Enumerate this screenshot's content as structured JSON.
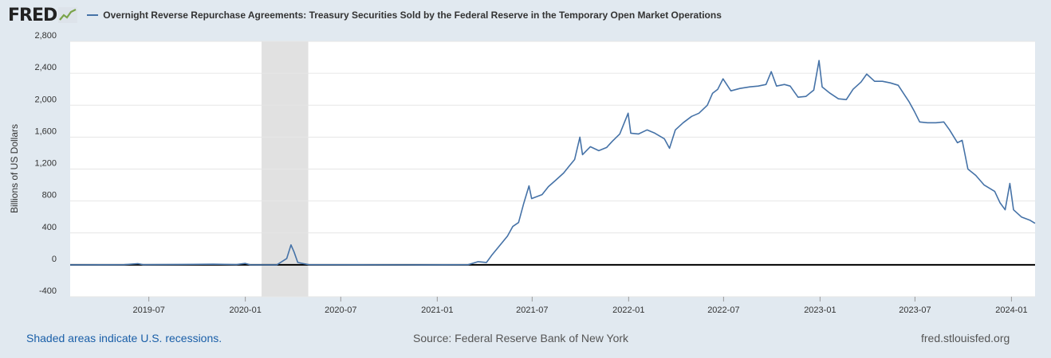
{
  "header": {
    "logo_text": "FRED",
    "logo_icon": "chart-line-icon",
    "series_title": "Overnight Reverse Repurchase Agreements: Treasury Securities Sold by the Federal Reserve in the Temporary Open Market Operations"
  },
  "footer": {
    "recession_note": "Shaded areas indicate U.S. recessions.",
    "source": "Source: Federal Reserve Bank of New York",
    "site": "fred.stlouisfed.org"
  },
  "colors": {
    "line": "#4572a7",
    "recession": "#e1e1e1",
    "zero_line": "#000000",
    "background": "#e1e9f0"
  },
  "chart_data": {
    "type": "line",
    "title": "Overnight Reverse Repurchase Agreements: Treasury Securities Sold by the Federal Reserve in the Temporary Open Market Operations",
    "ylabel": "Billions of US Dollars",
    "xlabel": "",
    "ylim": [
      -400,
      2800
    ],
    "yticks": [
      -400,
      0,
      400,
      800,
      1200,
      1600,
      2000,
      2400,
      2800
    ],
    "ytick_labels": [
      "-400",
      "0",
      "400",
      "800",
      "1,200",
      "1,600",
      "2,000",
      "2,400",
      "2,800"
    ],
    "xlim": [
      "2019-02-01",
      "2024-02-15"
    ],
    "xticks": [
      "2019-07",
      "2020-01",
      "2020-07",
      "2021-01",
      "2021-07",
      "2022-01",
      "2022-07",
      "2023-01",
      "2023-07",
      "2024-01"
    ],
    "grid": true,
    "legend": "top-left",
    "recessions": [
      {
        "start": "2020-02-01",
        "end": "2020-04-30"
      }
    ],
    "series": [
      {
        "name": "Overnight Reverse Repurchase Agreements: Treasury Securities Sold by the Federal Reserve in the Temporary Open Market Operations",
        "points": [
          [
            "2019-02-01",
            0
          ],
          [
            "2019-05-15",
            2
          ],
          [
            "2019-06-10",
            15
          ],
          [
            "2019-06-20",
            2
          ],
          [
            "2019-09-01",
            5
          ],
          [
            "2019-11-01",
            8
          ],
          [
            "2019-12-15",
            3
          ],
          [
            "2020-01-01",
            18
          ],
          [
            "2020-01-10",
            1
          ],
          [
            "2020-03-01",
            0
          ],
          [
            "2020-03-20",
            80
          ],
          [
            "2020-03-28",
            250
          ],
          [
            "2020-04-03",
            160
          ],
          [
            "2020-04-10",
            30
          ],
          [
            "2020-05-01",
            2
          ],
          [
            "2020-12-01",
            0
          ],
          [
            "2021-03-01",
            2
          ],
          [
            "2021-03-20",
            40
          ],
          [
            "2021-04-05",
            30
          ],
          [
            "2021-04-15",
            120
          ],
          [
            "2021-04-25",
            200
          ],
          [
            "2021-05-15",
            360
          ],
          [
            "2021-05-25",
            480
          ],
          [
            "2021-06-05",
            530
          ],
          [
            "2021-06-15",
            770
          ],
          [
            "2021-06-25",
            990
          ],
          [
            "2021-06-30",
            830
          ],
          [
            "2021-07-20",
            880
          ],
          [
            "2021-08-01",
            980
          ],
          [
            "2021-08-15",
            1060
          ],
          [
            "2021-08-30",
            1150
          ],
          [
            "2021-09-10",
            1240
          ],
          [
            "2021-09-20",
            1320
          ],
          [
            "2021-09-30",
            1600
          ],
          [
            "2021-10-05",
            1380
          ],
          [
            "2021-10-20",
            1480
          ],
          [
            "2021-11-05",
            1430
          ],
          [
            "2021-11-20",
            1470
          ],
          [
            "2021-12-01",
            1550
          ],
          [
            "2021-12-15",
            1640
          ],
          [
            "2021-12-31",
            1900
          ],
          [
            "2022-01-05",
            1650
          ],
          [
            "2022-01-20",
            1640
          ],
          [
            "2022-02-05",
            1690
          ],
          [
            "2022-02-20",
            1650
          ],
          [
            "2022-03-10",
            1580
          ],
          [
            "2022-03-20",
            1460
          ],
          [
            "2022-03-31",
            1690
          ],
          [
            "2022-04-15",
            1780
          ],
          [
            "2022-05-01",
            1860
          ],
          [
            "2022-05-15",
            1900
          ],
          [
            "2022-05-31",
            2000
          ],
          [
            "2022-06-10",
            2150
          ],
          [
            "2022-06-20",
            2200
          ],
          [
            "2022-06-30",
            2330
          ],
          [
            "2022-07-15",
            2180
          ],
          [
            "2022-08-01",
            2210
          ],
          [
            "2022-08-20",
            2230
          ],
          [
            "2022-09-05",
            2240
          ],
          [
            "2022-09-20",
            2260
          ],
          [
            "2022-09-30",
            2420
          ],
          [
            "2022-10-10",
            2240
          ],
          [
            "2022-10-25",
            2260
          ],
          [
            "2022-11-05",
            2240
          ],
          [
            "2022-11-20",
            2100
          ],
          [
            "2022-12-05",
            2110
          ],
          [
            "2022-12-20",
            2190
          ],
          [
            "2022-12-30",
            2560
          ],
          [
            "2023-01-05",
            2230
          ],
          [
            "2023-01-20",
            2150
          ],
          [
            "2023-02-05",
            2080
          ],
          [
            "2023-02-20",
            2070
          ],
          [
            "2023-03-05",
            2200
          ],
          [
            "2023-03-20",
            2290
          ],
          [
            "2023-03-31",
            2390
          ],
          [
            "2023-04-15",
            2300
          ],
          [
            "2023-04-30",
            2300
          ],
          [
            "2023-05-15",
            2280
          ],
          [
            "2023-05-30",
            2250
          ],
          [
            "2023-06-10",
            2140
          ],
          [
            "2023-06-20",
            2040
          ],
          [
            "2023-06-30",
            1920
          ],
          [
            "2023-07-10",
            1790
          ],
          [
            "2023-07-25",
            1780
          ],
          [
            "2023-08-10",
            1780
          ],
          [
            "2023-08-25",
            1790
          ],
          [
            "2023-09-05",
            1690
          ],
          [
            "2023-09-20",
            1530
          ],
          [
            "2023-09-29",
            1560
          ],
          [
            "2023-10-10",
            1200
          ],
          [
            "2023-10-25",
            1120
          ],
          [
            "2023-11-10",
            1000
          ],
          [
            "2023-11-30",
            920
          ],
          [
            "2023-12-10",
            780
          ],
          [
            "2023-12-20",
            690
          ],
          [
            "2023-12-29",
            1020
          ],
          [
            "2024-01-05",
            690
          ],
          [
            "2024-01-20",
            600
          ],
          [
            "2024-02-05",
            560
          ],
          [
            "2024-02-15",
            520
          ]
        ]
      }
    ]
  }
}
